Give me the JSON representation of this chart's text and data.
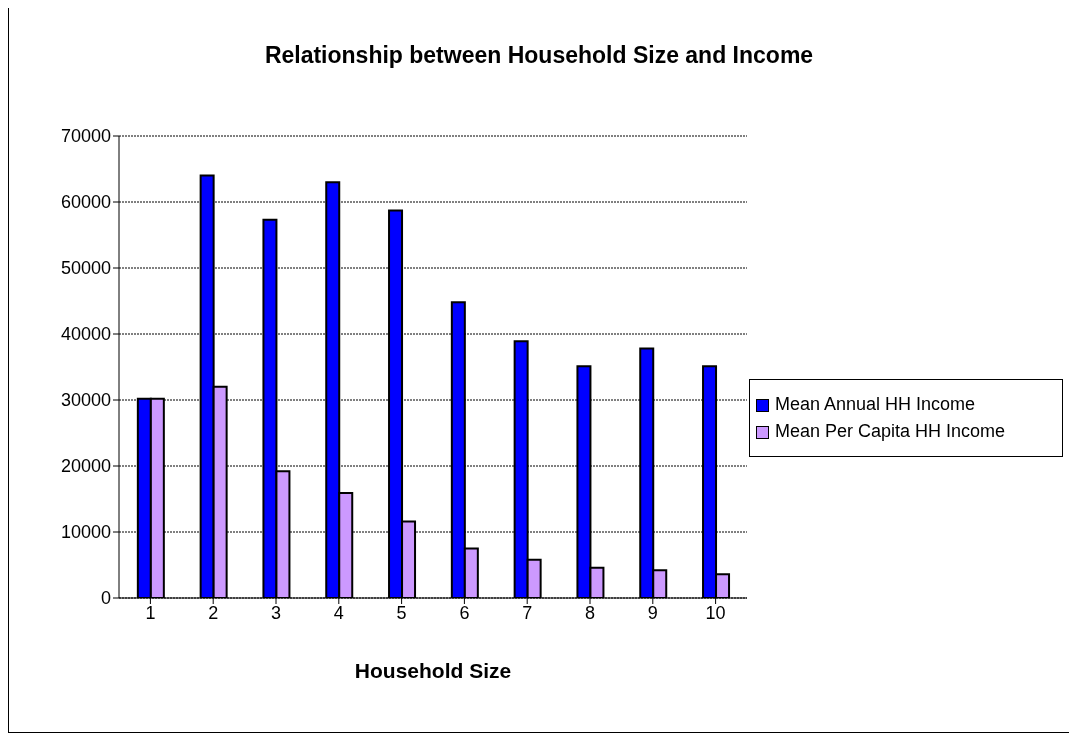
{
  "chart_data": {
    "type": "bar",
    "title": "Relationship between Household Size and Income",
    "xlabel": "Household Size",
    "categories": [
      "1",
      "2",
      "3",
      "4",
      "5",
      "6",
      "7",
      "8",
      "9",
      "10"
    ],
    "series": [
      {
        "name": "Mean Annual HH Income",
        "color": "#0000ff",
        "values": [
          30200,
          64000,
          57300,
          63000,
          58700,
          44800,
          38900,
          35100,
          37800,
          35100
        ]
      },
      {
        "name": "Mean Per Capita HH Income",
        "color": "#cc99ff",
        "values": [
          30200,
          32000,
          19200,
          15900,
          11600,
          7500,
          5800,
          4600,
          4200,
          3600
        ]
      }
    ],
    "ylim": [
      0,
      70000
    ],
    "yticks": [
      0,
      10000,
      20000,
      30000,
      40000,
      50000,
      60000,
      70000
    ],
    "grid": "y",
    "legend": "right"
  }
}
